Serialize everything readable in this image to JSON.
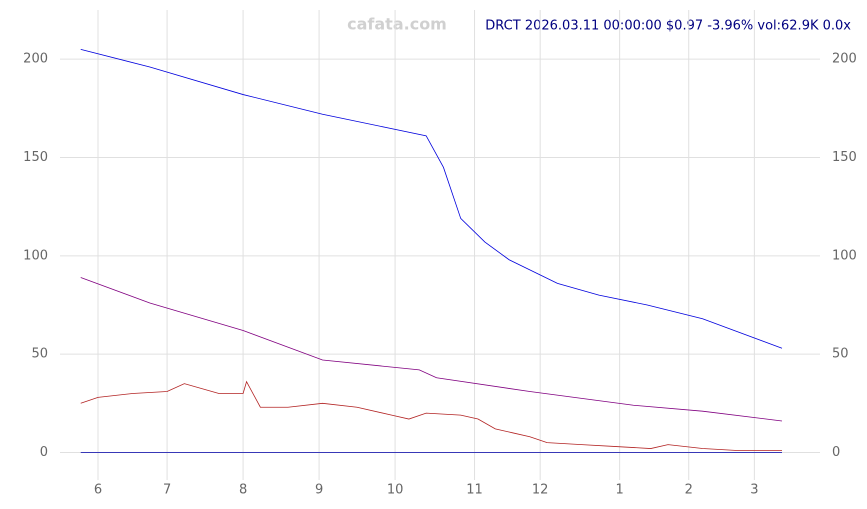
{
  "chart_data": {
    "type": "line",
    "title": "DRCT 2026.03.11 00:00:00 $0.97 -3.96% vol:62.9K 0.0x",
    "watermark": "cafata.com",
    "xlim": [
      -6,
      214
    ],
    "ylim": [
      -14,
      225
    ],
    "xticks": [
      {
        "value": 5,
        "label": "6"
      },
      {
        "value": 25,
        "label": "7"
      },
      {
        "value": 47,
        "label": "8"
      },
      {
        "value": 69,
        "label": "9"
      },
      {
        "value": 91,
        "label": "10"
      },
      {
        "value": 114,
        "label": "11"
      },
      {
        "value": 133,
        "label": "12"
      },
      {
        "value": 156,
        "label": "1"
      },
      {
        "value": 176,
        "label": "2"
      },
      {
        "value": 195,
        "label": "3"
      }
    ],
    "yticks": [
      0,
      50,
      100,
      150,
      200
    ],
    "grid": true,
    "series": [
      {
        "color": "#0000dd",
        "x": [
          0,
          20,
          47,
          70,
          100,
          105,
          110,
          117,
          124,
          138,
          150,
          164,
          180,
          203
        ],
        "values": [
          205,
          196,
          182,
          172,
          161,
          145,
          119,
          107,
          98,
          86,
          80,
          75,
          68,
          53
        ]
      },
      {
        "color": "#800080",
        "x": [
          0,
          20,
          47,
          70,
          98,
          103,
          130,
          160,
          180,
          203
        ],
        "values": [
          89,
          76,
          62,
          47,
          42,
          38,
          31,
          24,
          21,
          16
        ]
      },
      {
        "color": "#b22222",
        "x": [
          0,
          5,
          15,
          25,
          30,
          40,
          47,
          48,
          52,
          60,
          70,
          80,
          90,
          95,
          100,
          110,
          115,
          120,
          125,
          130,
          135,
          145,
          155,
          165,
          170,
          180,
          190,
          203
        ],
        "values": [
          25,
          28,
          30,
          31,
          35,
          30,
          30,
          36,
          23,
          23,
          25,
          23,
          19,
          17,
          20,
          19,
          17,
          12,
          10,
          8,
          5,
          4,
          3,
          2,
          4,
          2,
          1,
          1
        ]
      },
      {
        "color": "#0000aa",
        "x": [
          0,
          203
        ],
        "values": [
          0,
          0
        ]
      }
    ]
  }
}
